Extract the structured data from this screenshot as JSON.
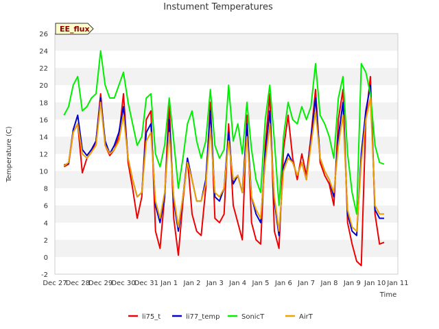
{
  "chart_data": {
    "type": "line",
    "title": "Instument Temperatures",
    "xlabel": "Time",
    "ylabel": "Temperature (C)",
    "badge": "EE_flux",
    "xlim": [
      0,
      15
    ],
    "ylim": [
      -2,
      26
    ],
    "x_ticks": [
      {
        "x": 0,
        "label": "Dec 27"
      },
      {
        "x": 1,
        "label": "Dec 28"
      },
      {
        "x": 2,
        "label": "Dec 29"
      },
      {
        "x": 3,
        "label": "Dec 30"
      },
      {
        "x": 4,
        "label": "Dec 31"
      },
      {
        "x": 5,
        "label": "Jan 1"
      },
      {
        "x": 6,
        "label": "Jan 2"
      },
      {
        "x": 7,
        "label": "Jan 3"
      },
      {
        "x": 8,
        "label": "Jan 4"
      },
      {
        "x": 9,
        "label": "Jan 5"
      },
      {
        "x": 10,
        "label": "Jan 6"
      },
      {
        "x": 11,
        "label": "Jan 7"
      },
      {
        "x": 12,
        "label": "Jan 8"
      },
      {
        "x": 13,
        "label": "Jan 9"
      },
      {
        "x": 14,
        "label": "Jan 10"
      },
      {
        "x": 15,
        "label": "Jan 11"
      }
    ],
    "y_ticks": [
      -2,
      0,
      2,
      4,
      6,
      8,
      10,
      12,
      14,
      16,
      18,
      20,
      22,
      24,
      26
    ],
    "grid": "horizontal bands",
    "legend_position": "bottom",
    "series": [
      {
        "name": "li75_t",
        "color": "#ee0000",
        "x": [
          0.4,
          0.6,
          0.8,
          1.0,
          1.2,
          1.4,
          1.6,
          1.8,
          2.0,
          2.2,
          2.4,
          2.6,
          2.8,
          3.0,
          3.2,
          3.4,
          3.6,
          3.8,
          4.0,
          4.2,
          4.4,
          4.6,
          4.8,
          5.0,
          5.2,
          5.4,
          5.6,
          5.8,
          6.0,
          6.2,
          6.4,
          6.6,
          6.8,
          7.0,
          7.2,
          7.4,
          7.6,
          7.8,
          8.0,
          8.2,
          8.4,
          8.6,
          8.8,
          9.0,
          9.2,
          9.4,
          9.6,
          9.8,
          10.0,
          10.2,
          10.4,
          10.6,
          10.8,
          11.0,
          11.2,
          11.4,
          11.6,
          11.8,
          12.0,
          12.2,
          12.4,
          12.6,
          12.8,
          13.0,
          13.2,
          13.4,
          13.6,
          13.8,
          14.0,
          14.2,
          14.4
        ],
        "y": [
          10.5,
          10.8,
          14.5,
          15.5,
          9.8,
          11.5,
          12.2,
          13.5,
          19.0,
          13.0,
          11.8,
          12.5,
          14.0,
          19.0,
          11.0,
          8.0,
          4.5,
          7.0,
          16.0,
          17.0,
          3.0,
          1.0,
          7.0,
          18.0,
          4.5,
          0.2,
          6.5,
          11.5,
          5.0,
          3.0,
          2.5,
          8.0,
          18.0,
          4.5,
          4.0,
          5.0,
          15.5,
          6.0,
          4.0,
          2.0,
          16.5,
          4.0,
          2.0,
          1.5,
          13.0,
          19.0,
          3.0,
          1.0,
          12.5,
          16.5,
          11.5,
          9.0,
          12.0,
          9.5,
          14.0,
          19.5,
          11.0,
          9.5,
          8.5,
          6.0,
          16.0,
          19.5,
          4.0,
          1.5,
          -0.5,
          -1.0,
          16.0,
          21.0,
          5.0,
          1.5,
          1.7
        ]
      },
      {
        "name": "li77_temp",
        "color": "#0000cc",
        "x": [
          0.4,
          0.6,
          0.8,
          1.0,
          1.2,
          1.4,
          1.6,
          1.8,
          2.0,
          2.2,
          2.4,
          2.6,
          2.8,
          3.0,
          3.2,
          3.4,
          3.6,
          3.8,
          4.0,
          4.2,
          4.4,
          4.6,
          4.8,
          5.0,
          5.2,
          5.4,
          5.6,
          5.8,
          6.0,
          6.2,
          6.4,
          6.6,
          6.8,
          7.0,
          7.2,
          7.4,
          7.6,
          7.8,
          8.0,
          8.2,
          8.4,
          8.6,
          8.8,
          9.0,
          9.2,
          9.4,
          9.6,
          9.8,
          10.0,
          10.2,
          10.4,
          10.6,
          10.8,
          11.0,
          11.2,
          11.4,
          11.6,
          11.8,
          12.0,
          12.2,
          12.4,
          12.6,
          12.8,
          13.0,
          13.2,
          13.4,
          13.6,
          13.8,
          14.0,
          14.2,
          14.4
        ],
        "y": [
          10.7,
          10.9,
          14.8,
          16.5,
          12.5,
          11.8,
          12.5,
          13.5,
          18.5,
          13.5,
          12.0,
          13.0,
          14.5,
          17.5,
          11.5,
          9.0,
          7.0,
          7.5,
          14.5,
          15.5,
          6.0,
          4.0,
          7.0,
          16.0,
          6.5,
          3.0,
          7.0,
          11.5,
          9.0,
          6.5,
          6.5,
          9.0,
          17.0,
          7.0,
          6.5,
          8.0,
          14.5,
          8.5,
          9.5,
          7.5,
          15.5,
          7.0,
          5.0,
          4.0,
          12.0,
          17.0,
          6.5,
          2.5,
          10.5,
          12.0,
          11.0,
          9.5,
          11.0,
          9.0,
          13.5,
          18.5,
          11.5,
          10.0,
          9.0,
          7.0,
          14.0,
          18.0,
          5.0,
          3.0,
          2.5,
          12.0,
          17.0,
          20.0,
          5.5,
          4.5,
          4.5
        ]
      },
      {
        "name": "SonicT",
        "color": "#00ee00",
        "x": [
          0.4,
          0.6,
          0.8,
          1.0,
          1.2,
          1.4,
          1.6,
          1.8,
          2.0,
          2.2,
          2.4,
          2.6,
          2.8,
          3.0,
          3.2,
          3.4,
          3.6,
          3.8,
          4.0,
          4.2,
          4.4,
          4.6,
          4.8,
          5.0,
          5.2,
          5.4,
          5.6,
          5.8,
          6.0,
          6.2,
          6.4,
          6.6,
          6.8,
          7.0,
          7.2,
          7.4,
          7.6,
          7.8,
          8.0,
          8.2,
          8.4,
          8.6,
          8.8,
          9.0,
          9.2,
          9.4,
          9.6,
          9.8,
          10.0,
          10.2,
          10.4,
          10.6,
          10.8,
          11.0,
          11.2,
          11.4,
          11.6,
          11.8,
          12.0,
          12.2,
          12.4,
          12.6,
          12.8,
          13.0,
          13.2,
          13.4,
          13.6,
          13.8,
          14.0,
          14.2,
          14.4
        ],
        "y": [
          16.5,
          17.5,
          20.0,
          21.0,
          17.0,
          17.5,
          18.5,
          19.0,
          24.0,
          20.0,
          18.5,
          18.5,
          20.0,
          21.5,
          18.0,
          15.5,
          13.0,
          14.0,
          18.5,
          19.0,
          12.0,
          10.5,
          13.0,
          18.5,
          13.5,
          8.0,
          11.5,
          15.5,
          17.0,
          13.5,
          11.5,
          13.5,
          19.5,
          13.0,
          11.5,
          12.5,
          20.0,
          13.5,
          15.5,
          12.0,
          18.0,
          12.5,
          9.0,
          7.5,
          16.0,
          20.0,
          13.5,
          6.0,
          14.0,
          18.0,
          16.0,
          15.5,
          17.5,
          16.0,
          17.5,
          22.5,
          16.5,
          15.5,
          14.0,
          11.5,
          18.5,
          21.0,
          12.0,
          7.5,
          5.0,
          22.5,
          21.5,
          19.0,
          13.0,
          11.0,
          10.8
        ]
      },
      {
        "name": "AirT",
        "color": "#f0a000",
        "x": [
          0.4,
          0.6,
          0.8,
          1.0,
          1.2,
          1.4,
          1.6,
          1.8,
          2.0,
          2.2,
          2.4,
          2.6,
          2.8,
          3.0,
          3.2,
          3.4,
          3.6,
          3.8,
          4.0,
          4.2,
          4.4,
          4.6,
          4.8,
          5.0,
          5.2,
          5.4,
          5.6,
          5.8,
          6.0,
          6.2,
          6.4,
          6.6,
          6.8,
          7.0,
          7.2,
          7.4,
          7.6,
          7.8,
          8.0,
          8.2,
          8.4,
          8.6,
          8.8,
          9.0,
          9.2,
          9.4,
          9.6,
          9.8,
          10.0,
          10.2,
          10.4,
          10.6,
          10.8,
          11.0,
          11.2,
          11.4,
          11.6,
          11.8,
          12.0,
          12.2,
          12.4,
          12.6,
          12.8,
          13.0,
          13.2,
          13.4,
          13.6,
          13.8,
          14.0,
          14.2,
          14.4
        ],
        "y": [
          10.6,
          11.0,
          14.5,
          15.5,
          12.0,
          11.5,
          12.2,
          13.0,
          18.0,
          13.0,
          12.0,
          12.5,
          13.5,
          16.5,
          11.5,
          9.0,
          7.0,
          7.5,
          13.5,
          14.5,
          6.5,
          4.5,
          7.5,
          14.5,
          7.0,
          3.5,
          7.0,
          11.0,
          9.0,
          6.5,
          6.5,
          8.5,
          15.0,
          7.5,
          7.0,
          8.0,
          13.5,
          9.0,
          9.5,
          7.5,
          14.0,
          7.0,
          5.5,
          4.5,
          11.0,
          15.5,
          7.0,
          3.0,
          10.0,
          11.5,
          11.0,
          9.5,
          11.0,
          9.0,
          13.0,
          17.0,
          11.5,
          10.0,
          9.0,
          7.5,
          13.0,
          16.5,
          5.5,
          3.5,
          3.0,
          11.0,
          16.0,
          18.5,
          6.0,
          5.0,
          5.0
        ]
      }
    ]
  }
}
